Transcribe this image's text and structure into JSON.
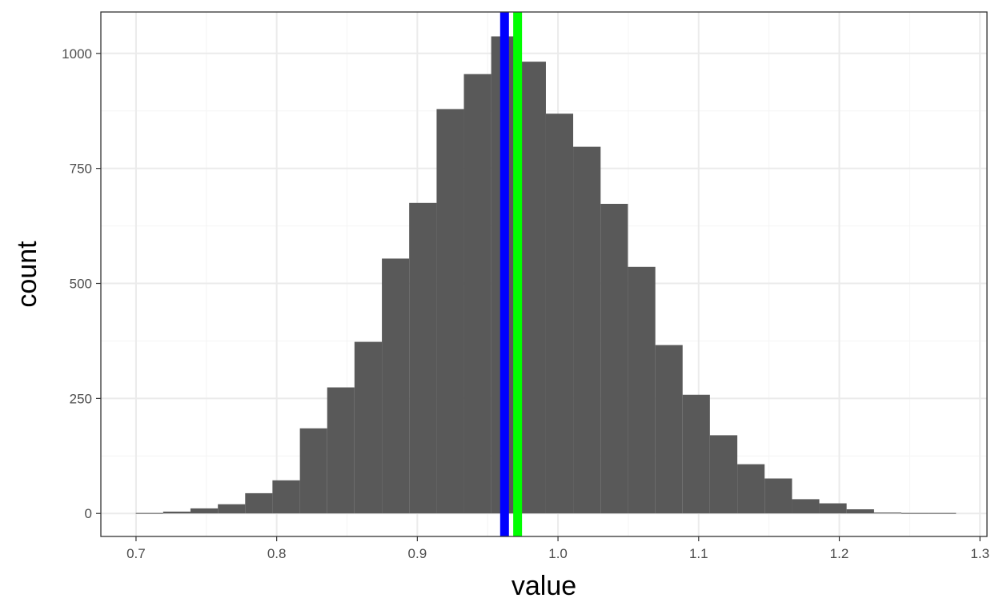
{
  "chart_data": {
    "type": "bar",
    "xlabel": "value",
    "ylabel": "count",
    "xlim": [
      0.675,
      1.305
    ],
    "ylim": [
      -50,
      1090
    ],
    "x_ticks": [
      0.7,
      0.8,
      0.9,
      1.0,
      1.1,
      1.2,
      1.3
    ],
    "x_tick_labels": [
      "0.7",
      "0.8",
      "0.9",
      "1.0",
      "1.1",
      "1.2",
      "1.3"
    ],
    "y_ticks": [
      0,
      250,
      500,
      750,
      1000
    ],
    "y_tick_labels": [
      "0",
      "250",
      "500",
      "750",
      "1000"
    ],
    "grid": true,
    "bin_width": 0.01944,
    "bins": [
      {
        "x0": 0.6998,
        "x1": 0.7193,
        "count": 1
      },
      {
        "x0": 0.7193,
        "x1": 0.7387,
        "count": 4
      },
      {
        "x0": 0.7387,
        "x1": 0.7582,
        "count": 11
      },
      {
        "x0": 0.7582,
        "x1": 0.7776,
        "count": 20
      },
      {
        "x0": 0.7776,
        "x1": 0.797,
        "count": 44
      },
      {
        "x0": 0.797,
        "x1": 0.8165,
        "count": 72
      },
      {
        "x0": 0.8165,
        "x1": 0.8359,
        "count": 185
      },
      {
        "x0": 0.8359,
        "x1": 0.8553,
        "count": 274
      },
      {
        "x0": 0.8553,
        "x1": 0.8748,
        "count": 373
      },
      {
        "x0": 0.8748,
        "x1": 0.8942,
        "count": 554
      },
      {
        "x0": 0.8942,
        "x1": 0.9137,
        "count": 675
      },
      {
        "x0": 0.9137,
        "x1": 0.9331,
        "count": 879
      },
      {
        "x0": 0.9331,
        "x1": 0.9525,
        "count": 955
      },
      {
        "x0": 0.9525,
        "x1": 0.972,
        "count": 1037
      },
      {
        "x0": 0.972,
        "x1": 0.9914,
        "count": 982
      },
      {
        "x0": 0.9914,
        "x1": 1.0108,
        "count": 869
      },
      {
        "x0": 1.0108,
        "x1": 1.0303,
        "count": 797
      },
      {
        "x0": 1.0303,
        "x1": 1.0497,
        "count": 673
      },
      {
        "x0": 1.0497,
        "x1": 1.0692,
        "count": 536
      },
      {
        "x0": 1.0692,
        "x1": 1.0886,
        "count": 366
      },
      {
        "x0": 1.0886,
        "x1": 1.108,
        "count": 258
      },
      {
        "x0": 1.108,
        "x1": 1.1275,
        "count": 170
      },
      {
        "x0": 1.1275,
        "x1": 1.1469,
        "count": 107
      },
      {
        "x0": 1.1469,
        "x1": 1.1664,
        "count": 76
      },
      {
        "x0": 1.1664,
        "x1": 1.1858,
        "count": 31
      },
      {
        "x0": 1.1858,
        "x1": 1.2052,
        "count": 22
      },
      {
        "x0": 1.2052,
        "x1": 1.2247,
        "count": 9
      },
      {
        "x0": 1.2247,
        "x1": 1.2441,
        "count": 2
      },
      {
        "x0": 1.2441,
        "x1": 1.2635,
        "count": 1
      },
      {
        "x0": 1.2635,
        "x1": 1.283,
        "count": 1
      }
    ],
    "bar_color": "#595959",
    "vlines": [
      {
        "x": 0.962,
        "color": "#0000ff"
      },
      {
        "x": 0.9713,
        "color": "#00ff00"
      }
    ]
  }
}
